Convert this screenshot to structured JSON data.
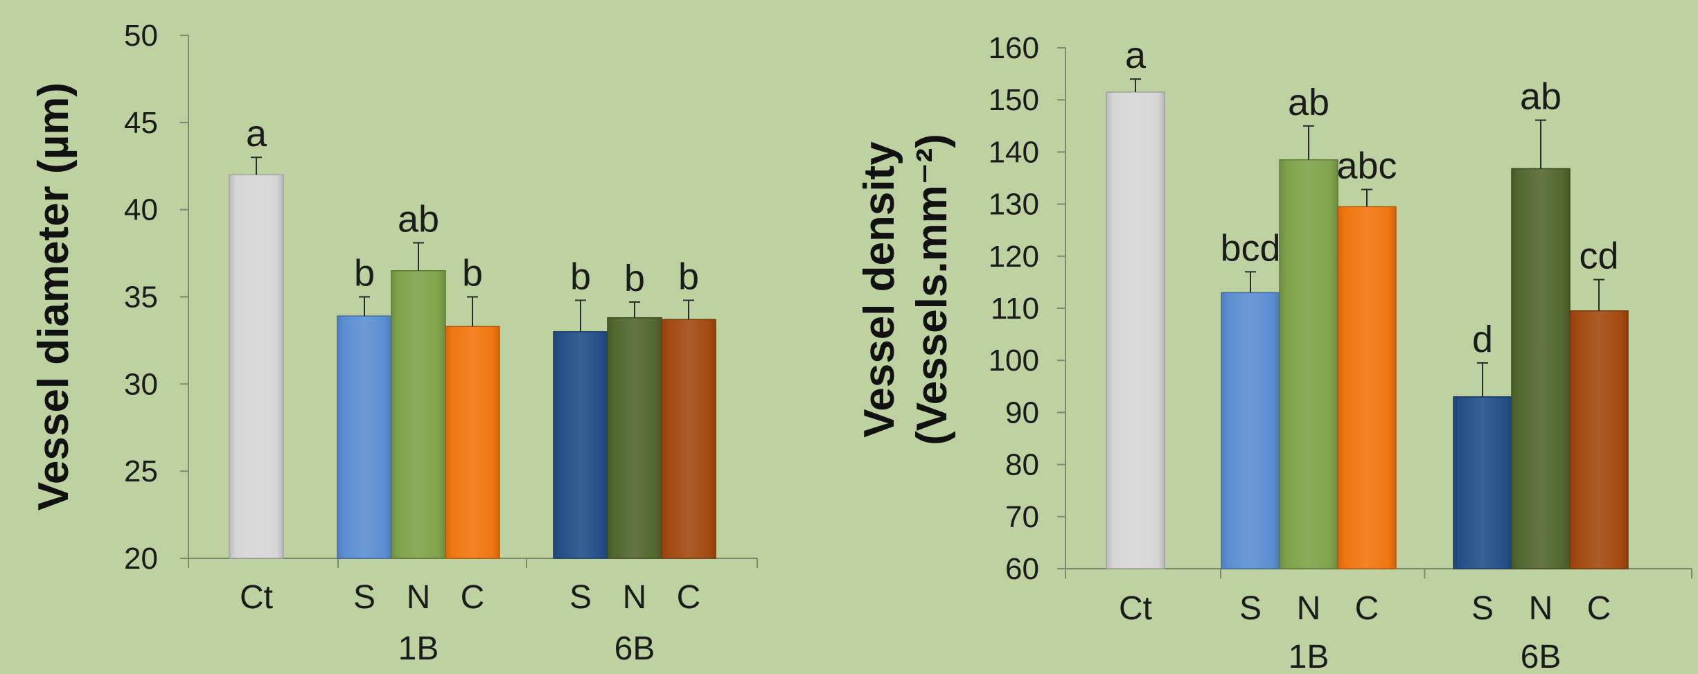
{
  "colors": {
    "background": "#bdd2a0",
    "Ct": "#d6d6d6",
    "1B_S": "#5b8fd2",
    "1B_N": "#7fa34a",
    "1B_C": "#f0760f",
    "6B_S": "#234f88",
    "6B_N": "#53672f",
    "6B_C": "#a34a10"
  },
  "chart_data": [
    {
      "type": "bar",
      "ylabel": "Vessel diameter (µm)",
      "ylim": [
        20,
        50
      ],
      "yticks": [
        "20",
        "25",
        "30",
        "35",
        "40",
        "45",
        "50"
      ],
      "groups": [
        "",
        "1B",
        "6B"
      ],
      "bars": [
        {
          "group": "",
          "category": "Ct",
          "value": 42.0,
          "error": 1.0,
          "letter": "a",
          "color_key": "Ct"
        },
        {
          "group": "1B",
          "category": "S",
          "value": 33.9,
          "error": 1.1,
          "letter": "b",
          "color_key": "1B_S"
        },
        {
          "group": "1B",
          "category": "N",
          "value": 36.5,
          "error": 1.6,
          "letter": "ab",
          "color_key": "1B_N"
        },
        {
          "group": "1B",
          "category": "C",
          "value": 33.3,
          "error": 1.7,
          "letter": "b",
          "color_key": "1B_C"
        },
        {
          "group": "6B",
          "category": "S",
          "value": 33.0,
          "error": 1.8,
          "letter": "b",
          "color_key": "6B_S"
        },
        {
          "group": "6B",
          "category": "N",
          "value": 33.8,
          "error": 0.9,
          "letter": "b",
          "color_key": "6B_N"
        },
        {
          "group": "6B",
          "category": "C",
          "value": 33.7,
          "error": 1.1,
          "letter": "b",
          "color_key": "6B_C"
        }
      ]
    },
    {
      "type": "bar",
      "ylabel_line1": "Vessel density",
      "ylabel_line2": "(Vessels.mm⁻²)",
      "ylim": [
        60,
        160
      ],
      "yticks": [
        "60",
        "70",
        "80",
        "90",
        "100",
        "110",
        "120",
        "130",
        "140",
        "150",
        "160"
      ],
      "groups": [
        "",
        "1B",
        "6B"
      ],
      "bars": [
        {
          "group": "",
          "category": "Ct",
          "value": 151.5,
          "error": 2.5,
          "letter": "a",
          "color_key": "Ct"
        },
        {
          "group": "1B",
          "category": "S",
          "value": 113.0,
          "error": 4.0,
          "letter": "bcd",
          "color_key": "1B_S"
        },
        {
          "group": "1B",
          "category": "N",
          "value": 138.5,
          "error": 6.5,
          "letter": "ab",
          "color_key": "1B_N"
        },
        {
          "group": "1B",
          "category": "C",
          "value": 129.5,
          "error": 3.3,
          "letter": "abc",
          "color_key": "1B_C"
        },
        {
          "group": "6B",
          "category": "S",
          "value": 93.0,
          "error": 6.5,
          "letter": "d",
          "color_key": "6B_S"
        },
        {
          "group": "6B",
          "category": "N",
          "value": 136.8,
          "error": 9.3,
          "letter": "ab",
          "color_key": "6B_N"
        },
        {
          "group": "6B",
          "category": "C",
          "value": 109.5,
          "error": 6.0,
          "letter": "cd",
          "color_key": "6B_C"
        }
      ]
    }
  ]
}
